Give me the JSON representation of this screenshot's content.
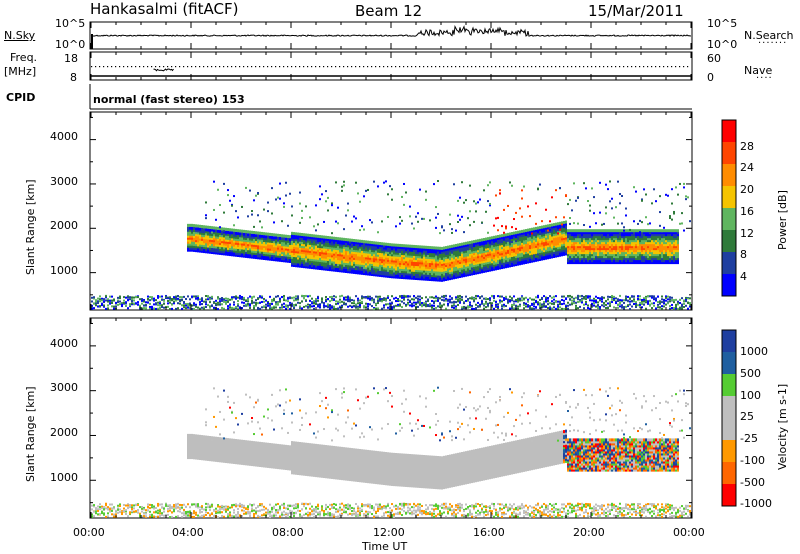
{
  "header": {
    "station": "Hankasalmi (fitACF)",
    "beam": "Beam 12",
    "date": "15/Mar/2011"
  },
  "left_labels": {
    "nsky": "N.Sky",
    "freq_top": "Freq.",
    "freq_unit": "[MHz]",
    "cpid": "CPID"
  },
  "right_labels": {
    "nsearch": "N.Search",
    "nave": "Nave"
  },
  "cpid_text": "normal (fast stereo) 153",
  "colors": {
    "power": [
      "#0000ff",
      "#1f3fa0",
      "#2f7a3a",
      "#5fb55f",
      "#f5c400",
      "#ff8c00",
      "#ff4500",
      "#ff0000"
    ],
    "velocity": [
      "#1f3fa0",
      "#1f5fa0",
      "#55cc33",
      "#bfbfbf",
      "#bfbfbf",
      "#ff9900",
      "#ff6600",
      "#ff0000"
    ],
    "ground_scatter": "#bebebe"
  },
  "chart_data": [
    {
      "type": "line",
      "name": "noise",
      "y_ticks_left": [
        "10^5",
        "10^0"
      ],
      "y_ticks_right": [
        "10^5",
        "10^0"
      ]
    },
    {
      "type": "line",
      "name": "frequency",
      "y_ticks_left": [
        "18",
        "8"
      ],
      "y_ticks_right": [
        "60",
        "0"
      ]
    },
    {
      "type": "heatmap",
      "name": "power",
      "ylabel": "Slant Range [km]",
      "y_ticks": [
        "1000",
        "2000",
        "3000",
        "4000"
      ],
      "ylim": [
        180,
        4600
      ],
      "colorbar_label": "Power [dB]",
      "colorbar_ticks": [
        "4",
        "8",
        "12",
        "16",
        "20",
        "24",
        "28"
      ]
    },
    {
      "type": "heatmap",
      "name": "velocity",
      "ylabel": "Slant Range [km]",
      "y_ticks": [
        "1000",
        "2000",
        "3000",
        "4000"
      ],
      "ylim": [
        180,
        4600
      ],
      "colorbar_label": "Velocity [m s-1]",
      "colorbar_ticks": [
        "1000",
        "500",
        "100",
        "25",
        "-25",
        "-100",
        "-500",
        "-1000"
      ]
    }
  ],
  "x_axis": {
    "ticks": [
      "00:00",
      "04:00",
      "08:00",
      "12:00",
      "16:00",
      "20:00",
      "00:00"
    ],
    "label": "Time UT"
  }
}
